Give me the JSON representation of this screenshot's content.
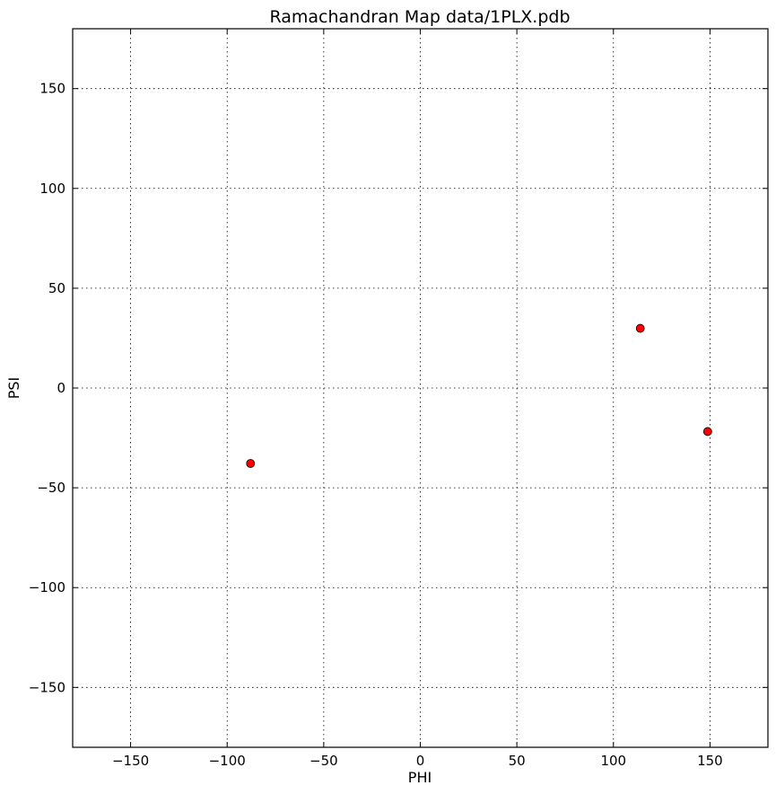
{
  "chart_data": {
    "type": "scatter",
    "title": "Ramachandran Map data/1PLX.pdb",
    "xlabel": "PHI",
    "ylabel": "PSI",
    "xlim": [
      -180,
      180
    ],
    "ylim": [
      -180,
      180
    ],
    "xticks": [
      -150,
      -100,
      -50,
      0,
      50,
      100,
      150
    ],
    "yticks": [
      -150,
      -100,
      -50,
      0,
      50,
      100,
      150
    ],
    "xtick_labels": [
      "−150",
      "−100",
      "−50",
      "0",
      "50",
      "100",
      "150"
    ],
    "ytick_labels": [
      "−150",
      "−100",
      "−50",
      "0",
      "50",
      "100",
      "150"
    ],
    "grid": true,
    "marker_color": "#ff0000",
    "points": [
      {
        "x": -87.9,
        "y": -37.8
      },
      {
        "x": 113.9,
        "y": 29.9
      },
      {
        "x": 148.8,
        "y": -21.8
      }
    ]
  }
}
